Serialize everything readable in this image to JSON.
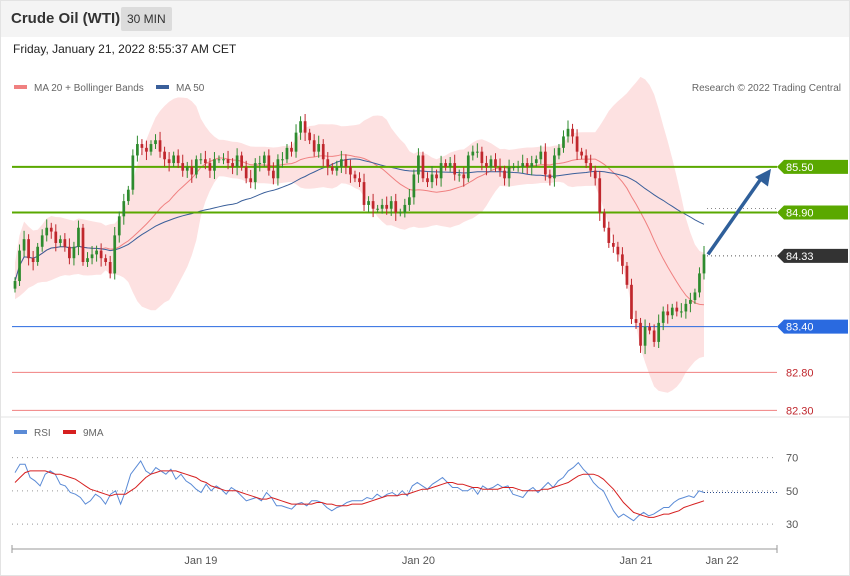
{
  "header": {
    "title": "Crude Oil (WTI)",
    "timeframe": "30 MIN",
    "timestamp": "Friday, January 21, 2022 8:55:37 AM CET"
  },
  "legend": {
    "ma20_label": "MA 20 + Bollinger Bands",
    "ma50_label": "MA 50",
    "credit": "Research © 2022 Trading Central",
    "rsi_label": "RSI",
    "rsi_ma_label": "9MA"
  },
  "colors": {
    "up": "#2e8b2e",
    "down": "#c0272d",
    "ma20": "#f08080",
    "ma50": "#3a5f9a",
    "band": "#fde1e1",
    "resistance": "#5aa800",
    "last": "#333333",
    "pivot": "#2a6ae0",
    "support": "#f08080",
    "rsi": "#5b8bd6",
    "rsi_ma": "#d62020",
    "arrow": "#2f5f9a"
  },
  "chart_data": [
    {
      "type": "candlestick",
      "title": "Crude Oil (WTI)",
      "timeframe": "30 MIN",
      "ylim": [
        82.2,
        86.3
      ],
      "x_ticks": [
        {
          "label": "Jan 19",
          "index": 41
        },
        {
          "label": "Jan 20",
          "index": 89
        },
        {
          "label": "Jan 21",
          "index": 137
        },
        {
          "label": "Jan 22",
          "index": 156
        }
      ],
      "close": [
        84.0,
        84.4,
        84.55,
        84.3,
        84.25,
        84.45,
        84.6,
        84.7,
        84.65,
        84.5,
        84.55,
        84.45,
        84.3,
        84.45,
        84.7,
        84.25,
        84.3,
        84.35,
        84.4,
        84.3,
        84.25,
        84.1,
        84.6,
        84.85,
        85.05,
        85.2,
        85.65,
        85.8,
        85.75,
        85.7,
        85.8,
        85.85,
        85.7,
        85.6,
        85.55,
        85.65,
        85.55,
        85.45,
        85.5,
        85.4,
        85.6,
        85.6,
        85.55,
        85.45,
        85.6,
        85.6,
        85.6,
        85.55,
        85.5,
        85.65,
        85.5,
        85.35,
        85.3,
        85.55,
        85.55,
        85.65,
        85.45,
        85.35,
        85.6,
        85.6,
        85.75,
        85.7,
        85.95,
        86.1,
        85.95,
        85.85,
        85.7,
        85.8,
        85.6,
        85.5,
        85.45,
        85.5,
        85.6,
        85.5,
        85.4,
        85.35,
        85.3,
        85.0,
        85.05,
        84.95,
        84.95,
        85.0,
        84.95,
        85.05,
        84.9,
        84.9,
        85.0,
        85.1,
        85.4,
        85.65,
        85.35,
        85.3,
        85.4,
        85.35,
        85.55,
        85.5,
        85.55,
        85.4,
        85.4,
        85.35,
        85.65,
        85.7,
        85.7,
        85.55,
        85.5,
        85.6,
        85.5,
        85.45,
        85.35,
        85.5,
        85.5,
        85.5,
        85.55,
        85.5,
        85.55,
        85.6,
        85.7,
        85.4,
        85.35,
        85.65,
        85.75,
        85.9,
        86.0,
        85.9,
        85.7,
        85.65,
        85.55,
        85.45,
        85.35,
        84.9,
        84.7,
        84.5,
        84.45,
        84.35,
        84.2,
        83.95,
        83.5,
        83.45,
        83.15,
        83.4,
        83.35,
        83.2,
        83.45,
        83.6,
        83.55,
        83.65,
        83.6,
        83.6,
        83.7,
        83.75,
        83.85,
        84.1,
        84.35
      ]
    },
    {
      "type": "line",
      "title": "RSI",
      "series": [
        {
          "name": "RSI",
          "values": [
            61,
            66,
            66,
            58,
            56,
            53,
            60,
            62,
            60,
            54,
            53,
            49,
            48,
            46,
            42,
            44,
            48,
            46,
            42,
            48,
            50,
            42,
            50,
            60,
            64,
            68,
            62,
            60,
            64,
            62,
            60,
            63,
            57,
            60,
            56,
            54,
            51,
            49,
            54,
            50,
            53,
            51,
            48,
            52,
            50,
            47,
            44,
            45,
            46,
            44,
            49,
            46,
            41,
            41,
            40,
            39,
            42,
            43,
            41,
            44,
            44,
            43,
            40,
            38,
            40,
            41,
            43,
            44,
            44,
            44,
            46,
            45,
            48,
            46,
            48,
            49,
            47,
            50,
            47,
            53,
            55,
            53,
            51,
            54,
            56,
            58,
            55,
            52,
            52,
            50,
            50,
            52,
            48,
            53,
            51,
            52,
            54,
            52,
            53,
            48,
            47,
            46,
            50,
            52,
            49,
            52,
            55,
            52,
            56,
            58,
            62,
            64,
            67,
            63,
            60,
            55,
            52,
            50,
            44,
            38,
            34,
            36,
            34,
            32,
            35,
            37,
            35,
            36,
            38,
            40,
            40,
            43,
            45,
            46,
            47,
            46,
            50,
            49
          ]
        },
        {
          "name": "9MA",
          "values": [
            55,
            58,
            61,
            62,
            62,
            62,
            62,
            61,
            60,
            60,
            59,
            58,
            57,
            55,
            53,
            51,
            50,
            49,
            48,
            47,
            48,
            48,
            48,
            50,
            52,
            55,
            58,
            60,
            61,
            62,
            62,
            62,
            62,
            61,
            60,
            59,
            58,
            56,
            55,
            53,
            52,
            51,
            50,
            50,
            50,
            49,
            48,
            47,
            46,
            45,
            45,
            46,
            45,
            44,
            43,
            42,
            42,
            42,
            42,
            42,
            43,
            43,
            42,
            42,
            41,
            41,
            41,
            42,
            42,
            42,
            43,
            44,
            45,
            46,
            47,
            47,
            47,
            48,
            48,
            49,
            50,
            51,
            51,
            52,
            53,
            54,
            55,
            55,
            54,
            54,
            53,
            52,
            52,
            51,
            51,
            51,
            51,
            52,
            52,
            52,
            51,
            50,
            50,
            50,
            50,
            51,
            51,
            52,
            53,
            54,
            55,
            57,
            59,
            60,
            60,
            60,
            59,
            57,
            54,
            51,
            47,
            43,
            40,
            37,
            36,
            35,
            34,
            34,
            35,
            36,
            36,
            37,
            38,
            40,
            41,
            42,
            43,
            44
          ]
        }
      ],
      "ylim": [
        18,
        80
      ],
      "y_ticks": [
        30,
        50,
        70
      ]
    }
  ],
  "levels": [
    {
      "label": "85.50",
      "value": 85.5,
      "role": "resistance"
    },
    {
      "label": "84.90",
      "value": 84.9,
      "role": "resistance"
    },
    {
      "label": "84.33",
      "value": 84.33,
      "role": "last"
    },
    {
      "label": "83.40",
      "value": 83.4,
      "role": "pivot"
    },
    {
      "label": "82.80",
      "value": 82.8,
      "role": "support"
    },
    {
      "label": "82.30",
      "value": 82.3,
      "role": "support"
    }
  ]
}
